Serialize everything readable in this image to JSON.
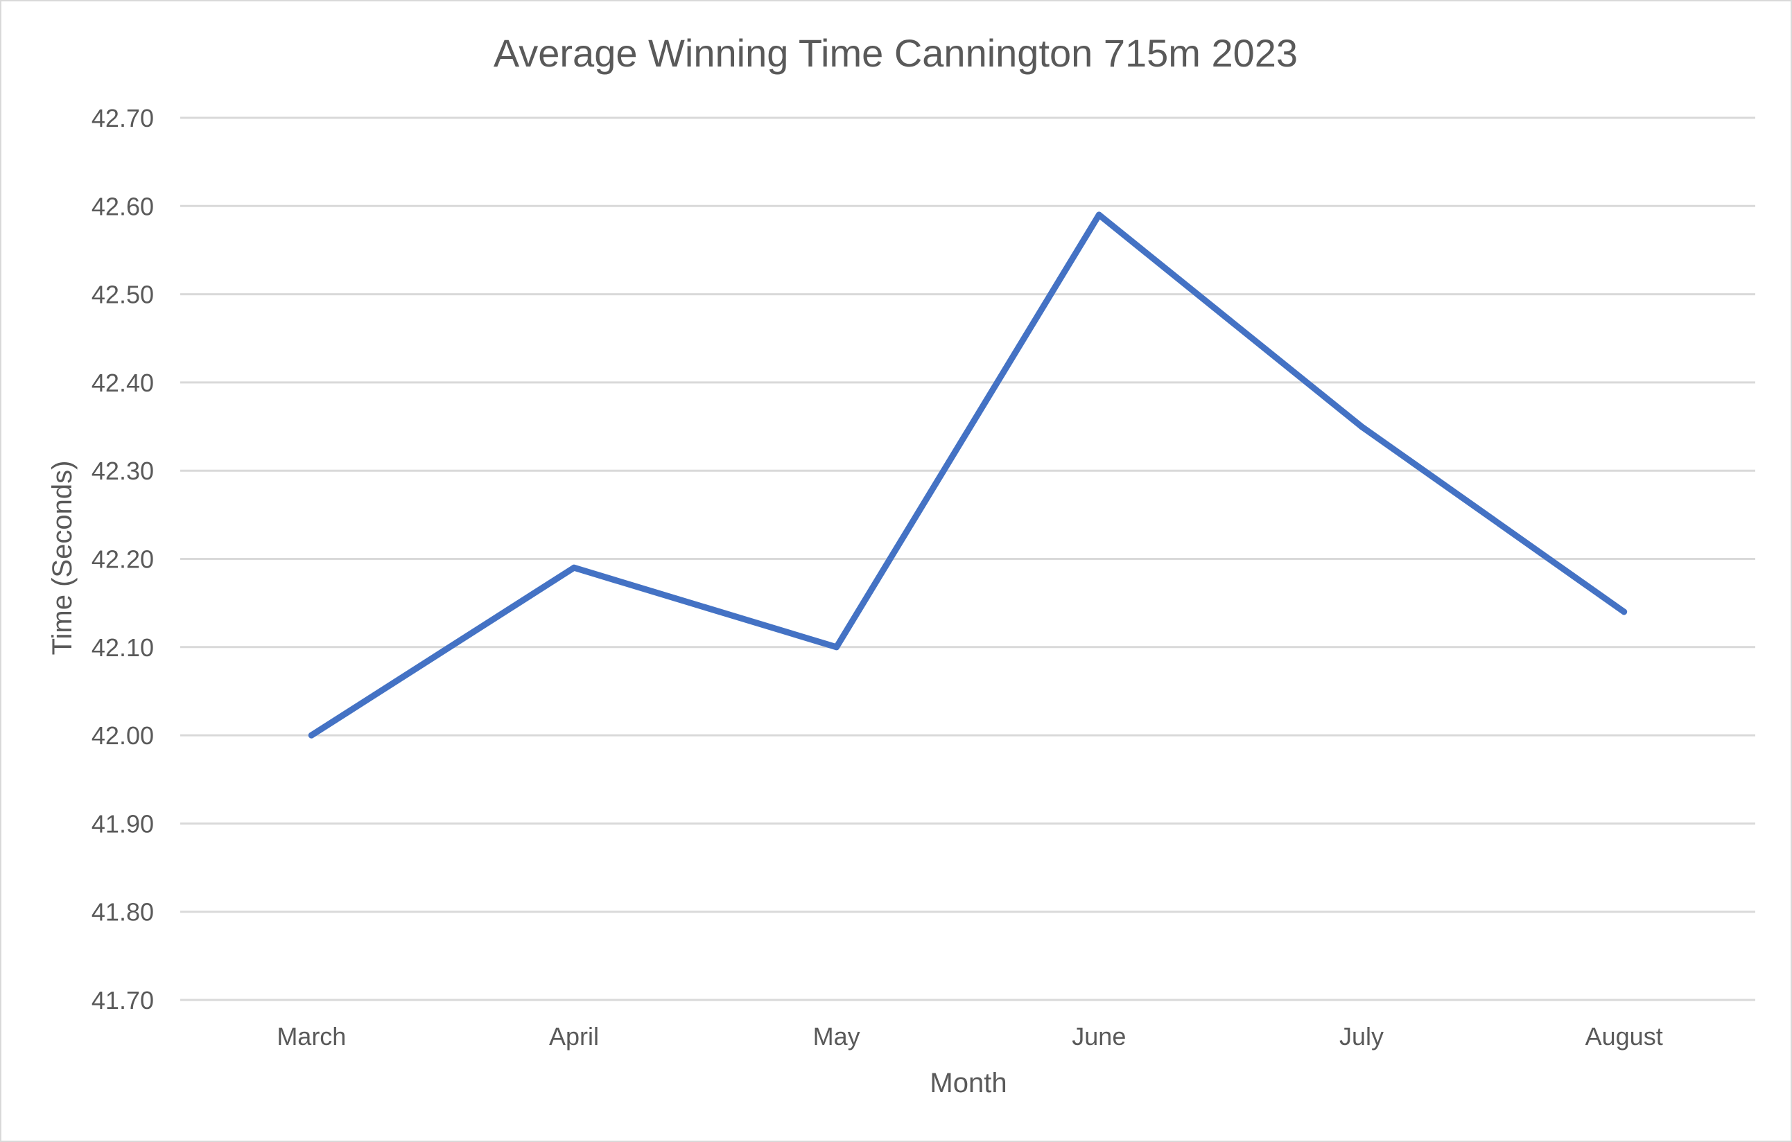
{
  "chart_data": {
    "type": "line",
    "title": "Average Winning Time Cannington 715m 2023",
    "xlabel": "Month",
    "ylabel": "Time (Seconds)",
    "categories": [
      "March",
      "April",
      "May",
      "June",
      "July",
      "August"
    ],
    "series": [
      {
        "values": [
          42.0,
          42.19,
          42.1,
          42.59,
          42.35,
          42.14
        ],
        "color": "#4472c4"
      }
    ],
    "ylim": [
      41.7,
      42.7
    ],
    "yticks": [
      "42.70",
      "42.60",
      "42.50",
      "42.40",
      "42.30",
      "42.20",
      "42.10",
      "42.00",
      "41.90",
      "41.80",
      "41.70"
    ],
    "grid": true,
    "legend": "none"
  }
}
